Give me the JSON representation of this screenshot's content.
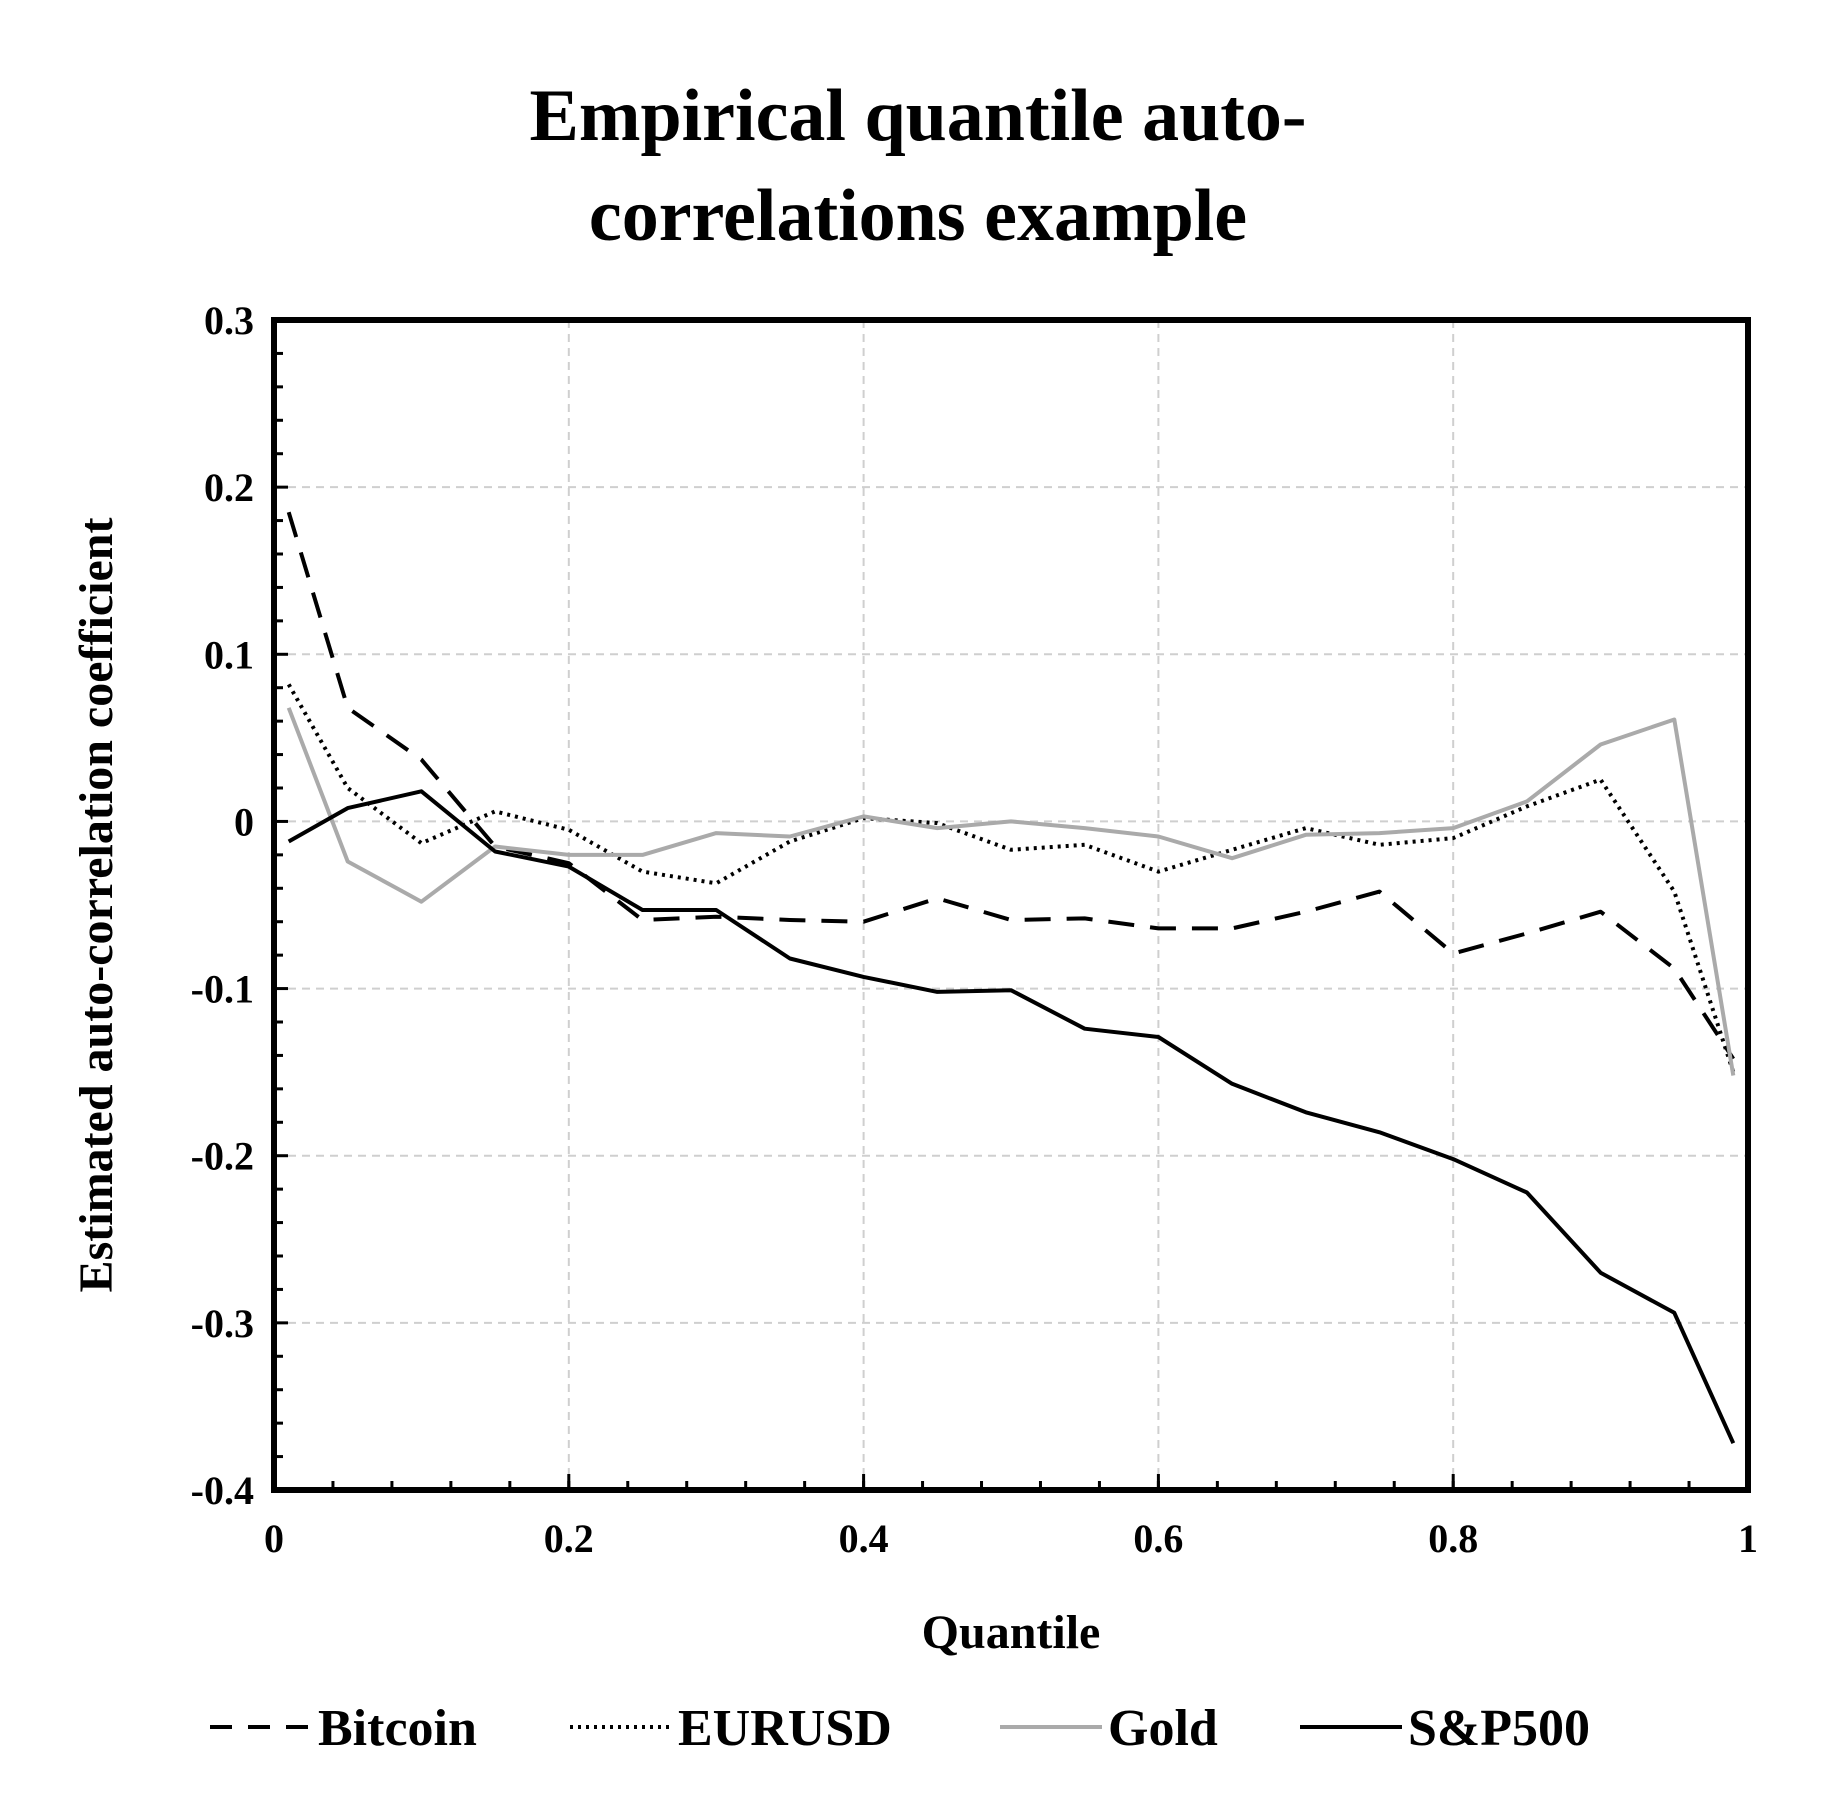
{
  "chart_data": {
    "type": "line",
    "title_lines": [
      "Empirical quantile auto-",
      "correlations example"
    ],
    "xlabel": "Quantile",
    "ylabel": "Estimated auto-correlation coefficient",
    "xlim": [
      0,
      1
    ],
    "ylim": [
      -0.4,
      0.3
    ],
    "xticks": [
      0,
      0.2,
      0.4,
      0.6,
      0.8,
      1
    ],
    "xtick_labels": [
      "0",
      "0.2",
      "0.4",
      "0.6",
      "0.8",
      "1"
    ],
    "yticks": [
      0.3,
      0.2,
      0.1,
      0,
      -0.1,
      -0.2,
      -0.3,
      -0.4
    ],
    "ytick_labels": [
      "0.3",
      "0.2",
      "0.1",
      "0",
      "-0.1",
      "-0.2",
      "-0.3",
      "-0.4"
    ],
    "grid": true,
    "legend_position": "bottom",
    "x": [
      0.01,
      0.05,
      0.1,
      0.15,
      0.2,
      0.25,
      0.3,
      0.35,
      0.4,
      0.45,
      0.5,
      0.55,
      0.6,
      0.65,
      0.7,
      0.75,
      0.8,
      0.85,
      0.9,
      0.95,
      0.99
    ],
    "series": [
      {
        "name": "Bitcoin",
        "style": "dashed",
        "color": "#000000",
        "values": [
          0.185,
          0.068,
          0.037,
          -0.015,
          -0.025,
          -0.059,
          -0.057,
          -0.059,
          -0.06,
          -0.046,
          -0.059,
          -0.058,
          -0.064,
          -0.064,
          -0.054,
          -0.042,
          -0.079,
          -0.067,
          -0.054,
          -0.088,
          -0.142
        ]
      },
      {
        "name": "EURUSD",
        "style": "dotted",
        "color": "#000000",
        "values": [
          0.082,
          0.02,
          -0.013,
          0.006,
          -0.005,
          -0.03,
          -0.037,
          -0.012,
          0.002,
          -0.001,
          -0.017,
          -0.014,
          -0.03,
          -0.017,
          -0.004,
          -0.014,
          -0.01,
          0.009,
          0.025,
          -0.042,
          -0.15
        ]
      },
      {
        "name": "Gold",
        "style": "solid",
        "color": "#aaaaaa",
        "values": [
          0.068,
          -0.024,
          -0.048,
          -0.015,
          -0.02,
          -0.02,
          -0.007,
          -0.009,
          0.003,
          -0.004,
          0.0,
          -0.004,
          -0.009,
          -0.022,
          -0.008,
          -0.007,
          -0.004,
          0.012,
          0.046,
          0.061,
          -0.152
        ]
      },
      {
        "name": "S&P500",
        "style": "solid",
        "color": "#000000",
        "values": [
          -0.012,
          0.008,
          0.018,
          -0.018,
          -0.027,
          -0.053,
          -0.053,
          -0.082,
          -0.093,
          -0.102,
          -0.101,
          -0.124,
          -0.129,
          -0.157,
          -0.174,
          -0.186,
          -0.202,
          -0.222,
          -0.27,
          -0.294,
          -0.372
        ]
      }
    ]
  }
}
